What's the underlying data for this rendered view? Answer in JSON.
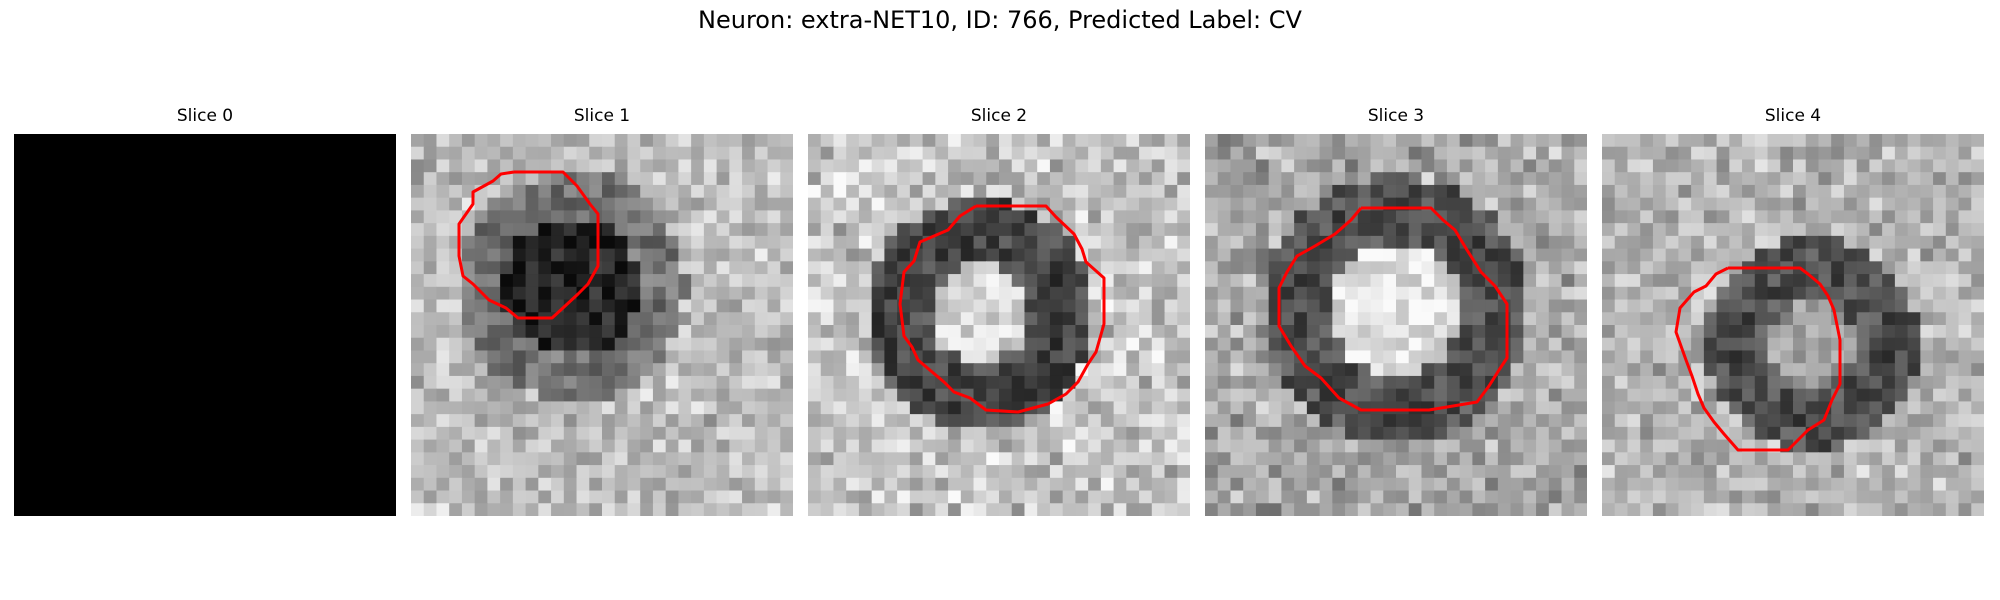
{
  "figure": {
    "title": "Neuron: extra-NET10, ID: 766, Predicted Label: CV"
  },
  "panels": [
    {
      "title": "Slice 0"
    },
    {
      "title": "Slice 1"
    },
    {
      "title": "Slice 2"
    },
    {
      "title": "Slice 3"
    },
    {
      "title": "Slice 4"
    }
  ],
  "colors": {
    "contour": "#ff0000",
    "background": "#ffffff"
  }
}
